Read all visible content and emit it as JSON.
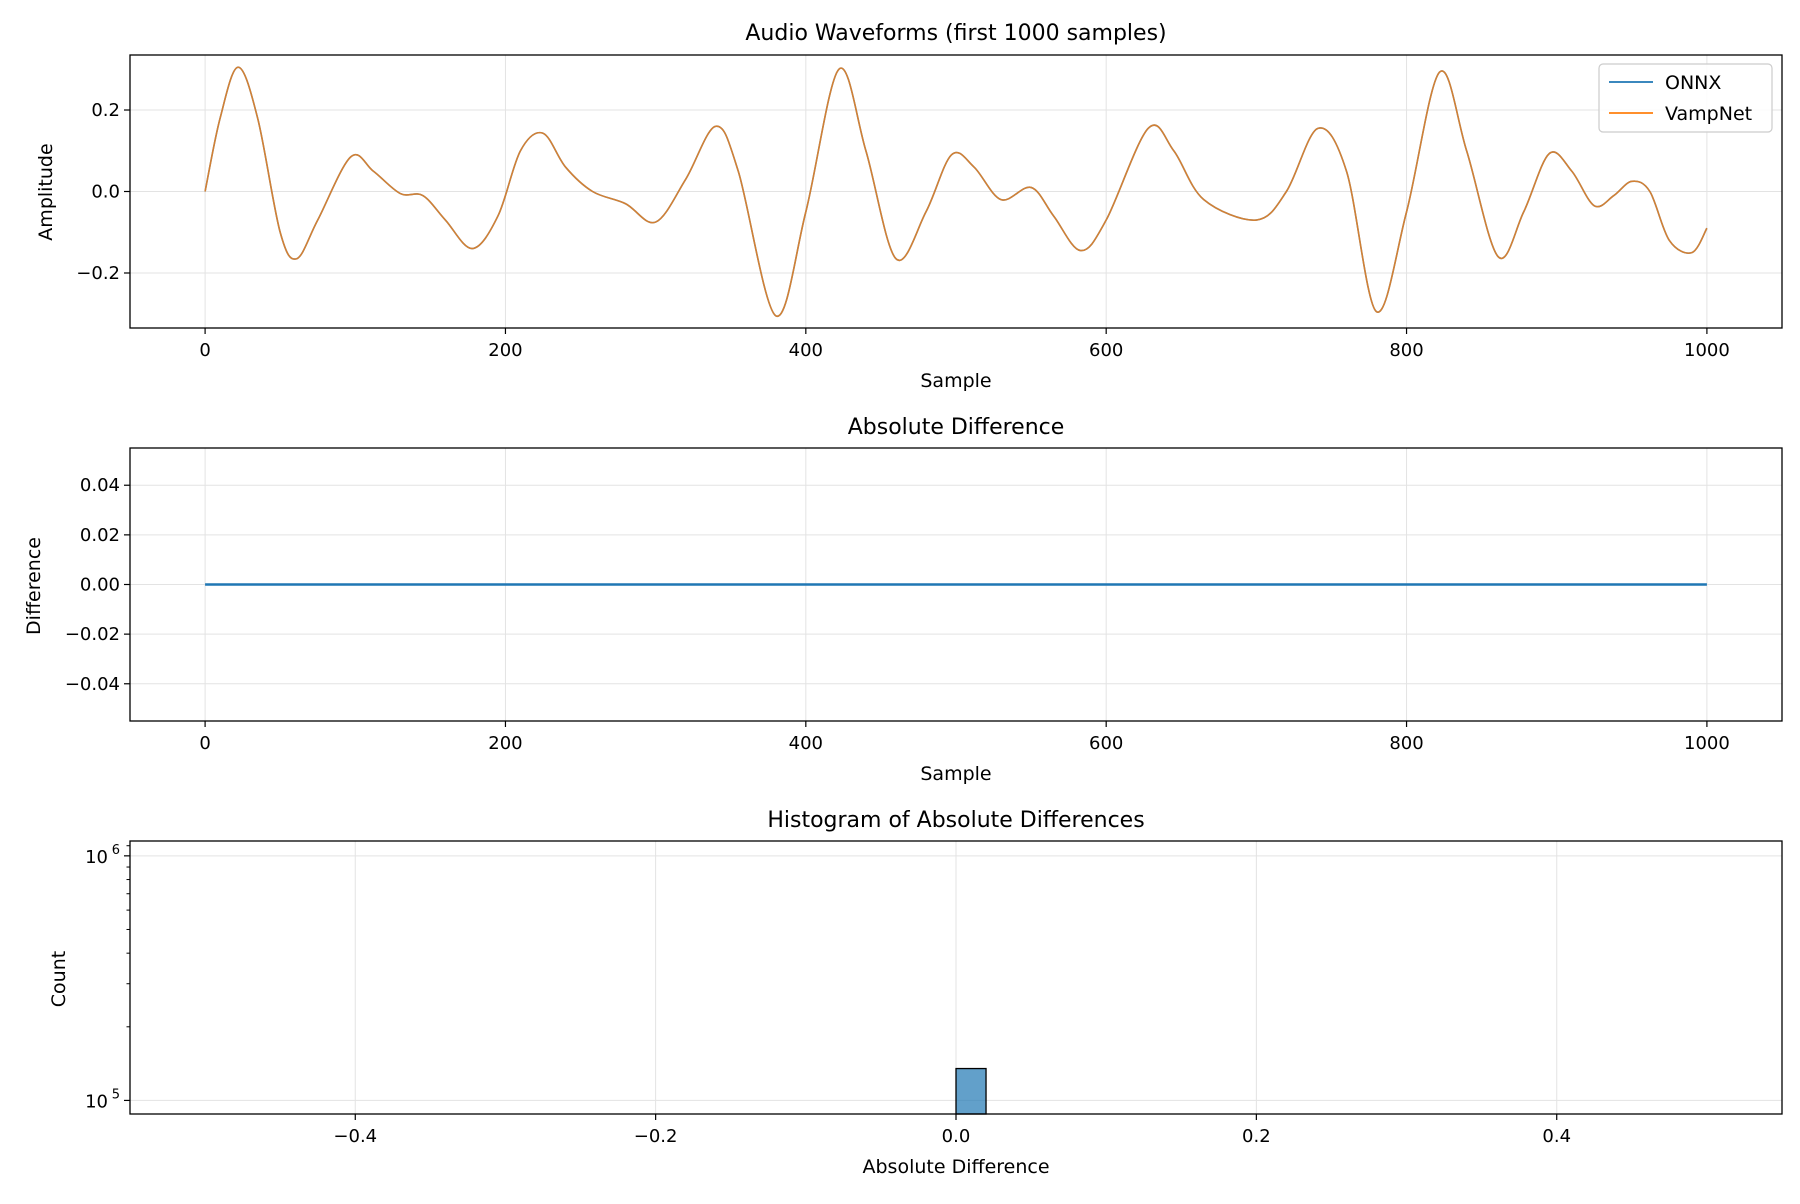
{
  "chart_data": [
    {
      "type": "line",
      "title": "Audio Waveforms (first 1000 samples)",
      "xlabel": "Sample",
      "ylabel": "Amplitude",
      "xlim": [
        -50,
        1050
      ],
      "ylim": [
        -0.335,
        0.335
      ],
      "xticks": [
        0,
        200,
        400,
        600,
        800,
        1000
      ],
      "xtick_labels": [
        "0",
        "200",
        "400",
        "600",
        "800",
        "1000"
      ],
      "yticks": [
        -0.2,
        0.0,
        0.2
      ],
      "ytick_labels": [
        "−0.2",
        "0.0",
        "0.2"
      ],
      "grid": true,
      "legend": "top-right",
      "x": [
        0,
        10,
        22,
        35,
        50,
        61,
        75,
        97,
        112,
        130,
        145,
        160,
        178,
        195,
        210,
        225,
        240,
        258,
        280,
        300,
        320,
        340,
        355,
        380,
        400,
        422,
        440,
        460,
        480,
        497,
        512,
        530,
        550,
        565,
        583,
        600,
        628,
        645,
        665,
        700,
        720,
        741,
        760,
        780,
        800,
        822,
        840,
        861,
        878,
        895,
        910,
        925,
        938,
        950,
        962,
        975,
        990,
        1000
      ],
      "series": [
        {
          "name": "ONNX",
          "color": "#1f77b4",
          "values": [
            0.0,
            0.18,
            0.305,
            0.18,
            -0.1,
            -0.165,
            -0.07,
            0.085,
            0.05,
            -0.005,
            -0.01,
            -0.07,
            -0.14,
            -0.06,
            0.1,
            0.143,
            0.06,
            0.0,
            -0.03,
            -0.075,
            0.03,
            0.16,
            0.05,
            -0.305,
            -0.05,
            0.3,
            0.1,
            -0.165,
            -0.05,
            0.09,
            0.06,
            -0.02,
            0.01,
            -0.06,
            -0.145,
            -0.07,
            0.155,
            0.1,
            -0.02,
            -0.07,
            0.0,
            0.155,
            0.05,
            -0.295,
            -0.05,
            0.293,
            0.1,
            -0.16,
            -0.05,
            0.093,
            0.05,
            -0.035,
            -0.01,
            0.025,
            0.0,
            -0.12,
            -0.15,
            -0.09
          ]
        },
        {
          "name": "VampNet",
          "color": "#ff7f0e",
          "values": [
            0.0,
            0.18,
            0.305,
            0.18,
            -0.1,
            -0.165,
            -0.07,
            0.085,
            0.05,
            -0.005,
            -0.01,
            -0.07,
            -0.14,
            -0.06,
            0.1,
            0.143,
            0.06,
            0.0,
            -0.03,
            -0.075,
            0.03,
            0.16,
            0.05,
            -0.305,
            -0.05,
            0.3,
            0.1,
            -0.165,
            -0.05,
            0.09,
            0.06,
            -0.02,
            0.01,
            -0.06,
            -0.145,
            -0.07,
            0.155,
            0.1,
            -0.02,
            -0.07,
            0.0,
            0.155,
            0.05,
            -0.295,
            -0.05,
            0.293,
            0.1,
            -0.16,
            -0.05,
            0.093,
            0.05,
            -0.035,
            -0.01,
            0.025,
            0.0,
            -0.12,
            -0.15,
            -0.09
          ]
        }
      ]
    },
    {
      "type": "line",
      "title": "Absolute Difference",
      "xlabel": "Sample",
      "ylabel": "Difference",
      "xlim": [
        -50,
        1050
      ],
      "ylim": [
        -0.055,
        0.055
      ],
      "xticks": [
        0,
        200,
        400,
        600,
        800,
        1000
      ],
      "xtick_labels": [
        "0",
        "200",
        "400",
        "600",
        "800",
        "1000"
      ],
      "yticks": [
        -0.04,
        -0.02,
        0.0,
        0.02,
        0.04
      ],
      "ytick_labels": [
        "−0.04",
        "−0.02",
        "0.00",
        "0.02",
        "0.04"
      ],
      "grid": true,
      "x": [
        0,
        1000
      ],
      "series": [
        {
          "color": "#1f77b4",
          "values": [
            0.0,
            0.0
          ]
        }
      ]
    },
    {
      "type": "bar",
      "title": "Histogram of Absolute Differences",
      "xlabel": "Absolute Difference",
      "ylabel": "Count",
      "yscale": "log",
      "xlim": [
        -0.55,
        0.55
      ],
      "ylim": [
        88000,
        1150000
      ],
      "xticks": [
        -0.4,
        -0.2,
        0.0,
        0.2,
        0.4
      ],
      "xtick_labels": [
        "−0.4",
        "−0.2",
        "0.0",
        "0.2",
        "0.4"
      ],
      "ytick_labels": [
        "10",
        "10"
      ],
      "ytick_exponents": [
        "5",
        "6"
      ],
      "grid": true,
      "bars": [
        {
          "x0": 0.0,
          "x1": 0.02,
          "value": 135000,
          "color": "#1f77b4"
        }
      ]
    }
  ]
}
